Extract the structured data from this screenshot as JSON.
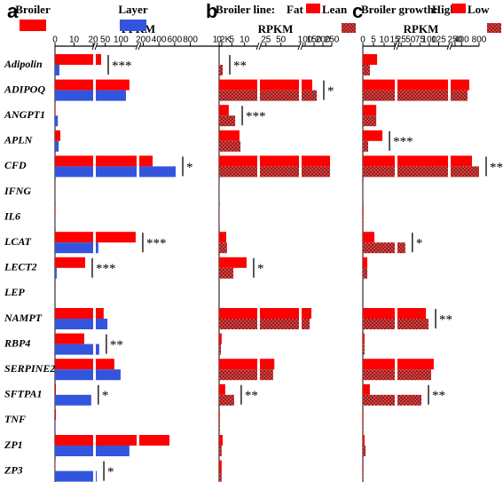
{
  "chart_data": [
    {
      "type": "bar",
      "title": "a",
      "xlabel": "FPKM",
      "orientation": "horizontal",
      "categories": [
        "Adipolin",
        "ADIPOQ",
        "ANGPT1",
        "APLN",
        "CFD",
        "IFNG",
        "IL6",
        "LCAT",
        "LECT2",
        "LEP",
        "NAMPT",
        "RBP4",
        "SERPINE2",
        "SFTPA1",
        "TNF",
        "ZP1",
        "ZP3"
      ],
      "series": [
        {
          "name": "Broiler",
          "color": "#ff0000",
          "hatch": false,
          "values": [
            37,
            127,
            0.3,
            2.8,
            320,
            0.1,
            0.3,
            147,
            15.8,
            0.05,
            45,
            15.3,
            79,
            0.5,
            0.5,
            534,
            0.2
          ]
        },
        {
          "name": "Layer",
          "color": "#3355dd",
          "hatch": false,
          "values": [
            2.3,
            116,
            1.5,
            1.9,
            613,
            0.1,
            0.1,
            28,
            0.9,
            0.05,
            57,
            31,
            99,
            19,
            0.3,
            127,
            23
          ]
        }
      ],
      "significance": [
        "***",
        null,
        null,
        null,
        "*",
        null,
        null,
        "***",
        "***",
        null,
        null,
        "**",
        null,
        "*",
        null,
        null,
        "*"
      ],
      "xlim": [
        0,
        1200
      ],
      "xbreaks": [
        20,
        150
      ],
      "xticks": [
        0,
        10,
        20,
        50,
        100,
        200,
        400,
        600,
        800,
        {
          "value": 1200,
          "label": "1.2K"
        }
      ]
    },
    {
      "type": "bar",
      "title": "b",
      "xlabel": "RPKM",
      "orientation": "horizontal",
      "legend_title": "Broiler line:",
      "series": [
        {
          "name": "Fat",
          "color": "#ff0000",
          "hatch": false,
          "values": [
            0,
            140,
            3.8,
            8,
            240,
            0.1,
            0.1,
            2.8,
            10.8,
            0,
            135,
            1,
            39,
            2.4,
            0.3,
            1.4,
            1
          ]
        },
        {
          "name": "Lean",
          "color": "#e04848",
          "hatch": true,
          "values": [
            1.4,
            165,
            6.3,
            8.4,
            240,
            0.1,
            0.1,
            3.1,
            5.6,
            0,
            125,
            0.7,
            37,
            5.9,
            0.3,
            1,
            1
          ]
        }
      ],
      "significance": [
        "**",
        "*",
        "***",
        null,
        null,
        null,
        null,
        null,
        "*",
        null,
        null,
        null,
        null,
        "**",
        null,
        null,
        null
      ],
      "xlim": [
        0,
        250
      ],
      "xbreaks": [
        15,
        80
      ],
      "xticks": [
        0,
        5,
        10,
        25,
        50,
        100,
        150,
        200,
        250
      ]
    },
    {
      "type": "bar",
      "title": "c",
      "xlabel": "RPKM",
      "orientation": "horizontal",
      "legend_title": "Broiler growth:",
      "series": [
        {
          "name": "High",
          "color": "#ff0000",
          "hatch": false,
          "values": [
            6.7,
            577,
            6.3,
            9.2,
            638,
            0.1,
            0.3,
            5.4,
            2.1,
            0,
            91,
            0.8,
            112,
            3.3,
            0.3,
            0.8,
            0.3
          ]
        },
        {
          "name": "Low",
          "color": "#e04848",
          "hatch": true,
          "values": [
            3.3,
            536,
            6.3,
            2.5,
            800,
            0.1,
            0.3,
            36,
            2.1,
            0,
            98,
            0.8,
            105,
            79,
            0.3,
            1.3,
            0.3
          ]
        }
      ],
      "significance": [
        null,
        null,
        null,
        "***",
        "**",
        null,
        null,
        "*",
        null,
        null,
        "**",
        null,
        null,
        "**",
        null,
        null,
        null
      ],
      "xlim": [
        0,
        800
      ],
      "xbreaks": [
        15,
        150
      ],
      "xticks": [
        0,
        5,
        10,
        15,
        25,
        50,
        75,
        100,
        125,
        250,
        400,
        800
      ]
    }
  ]
}
